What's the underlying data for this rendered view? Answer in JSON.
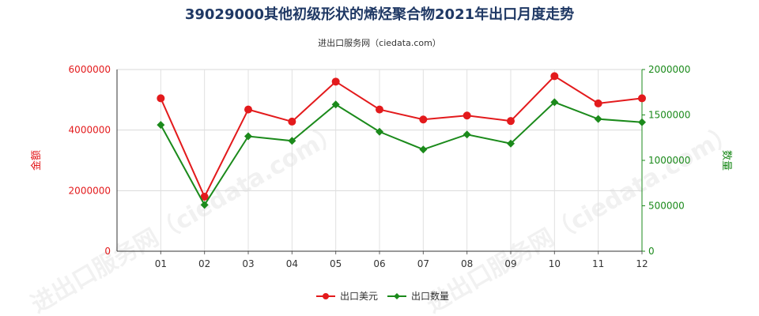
{
  "chart_data": {
    "type": "line",
    "title": "39029000其他初级形状的烯烃聚合物2021年出口月度走势",
    "subtitle": "进出口服务网（ciedata.com）",
    "categories": [
      "01",
      "02",
      "03",
      "04",
      "05",
      "06",
      "07",
      "08",
      "09",
      "10",
      "11",
      "12"
    ],
    "y_left": {
      "label": "金额",
      "min": 0,
      "max": 6000000,
      "ticks": [
        "0",
        "2000000",
        "4000000",
        "6000000"
      ],
      "color": "#e31a1c"
    },
    "y_right": {
      "label": "数量",
      "min": 0,
      "max": 2000000,
      "ticks": [
        "0",
        "500000",
        "1000000",
        "1500000",
        "2000000"
      ],
      "color": "#1b8a1b"
    },
    "series": [
      {
        "name": "出口美元",
        "axis": "left",
        "color": "#e31a1c",
        "marker": "circle",
        "values": [
          5050000,
          1800000,
          4680000,
          4280000,
          5600000,
          4680000,
          4350000,
          4480000,
          4300000,
          5780000,
          4880000,
          5050000
        ]
      },
      {
        "name": "出口数量",
        "axis": "right",
        "color": "#1b8a1b",
        "marker": "diamond",
        "values": [
          1390000,
          510000,
          1265000,
          1215000,
          1615000,
          1315000,
          1120000,
          1285000,
          1185000,
          1640000,
          1455000,
          1420000
        ]
      }
    ],
    "legend_position": "bottom-center",
    "grid": true
  }
}
